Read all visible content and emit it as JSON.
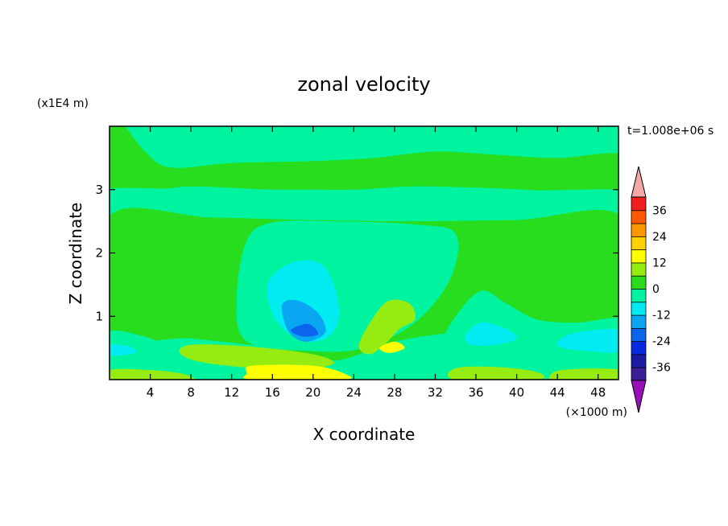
{
  "chart_data": {
    "type": "heatmap",
    "title": "zonal velocity",
    "xlabel": "X coordinate",
    "ylabel": "Z coordinate",
    "x_unit": "(×1000 m)",
    "y_unit": "(x1E4 m)",
    "time_label": "t=1.008e+06 s",
    "xlim": [
      0,
      50
    ],
    "ylim": [
      0,
      4
    ],
    "x_ticks": [
      4,
      8,
      12,
      16,
      20,
      24,
      28,
      32,
      36,
      40,
      44,
      48
    ],
    "x_tick_labels": [
      "4",
      "8",
      "12",
      "16",
      "20",
      "24",
      "28",
      "32",
      "36",
      "40",
      "44",
      "48"
    ],
    "y_ticks": [
      1,
      2,
      3
    ],
    "y_tick_labels": [
      "1",
      "2",
      "3"
    ],
    "colorbar": {
      "levels": [
        -42,
        -36,
        -30,
        -24,
        -18,
        -12,
        -6,
        0,
        6,
        12,
        18,
        24,
        30,
        36,
        42
      ],
      "labels": [
        "36",
        "24",
        "12",
        "0",
        "-12",
        "-24",
        "-36"
      ],
      "label_values": [
        36,
        24,
        12,
        0,
        -12,
        -24,
        -36
      ],
      "colors": [
        "#3c1e98",
        "#1a1aa4",
        "#0a2ae0",
        "#0a64ec",
        "#0aa6f2",
        "#00ecf0",
        "#00f4a0",
        "#28dc1e",
        "#96ec10",
        "#ffff00",
        "#ffd200",
        "#ff9600",
        "#ff5a00",
        "#f01e1e"
      ],
      "under_color": "#9a10b8",
      "over_color": "#f4a8a8"
    },
    "band_colors": {
      "light_green": "#00f4a0",
      "green": "#28dc1e",
      "cyan": "#00ecf0",
      "lime": "#96ec10",
      "yellow": "#ffff00",
      "blue": "#0a64ec",
      "sky": "#0aa6f2"
    }
  }
}
